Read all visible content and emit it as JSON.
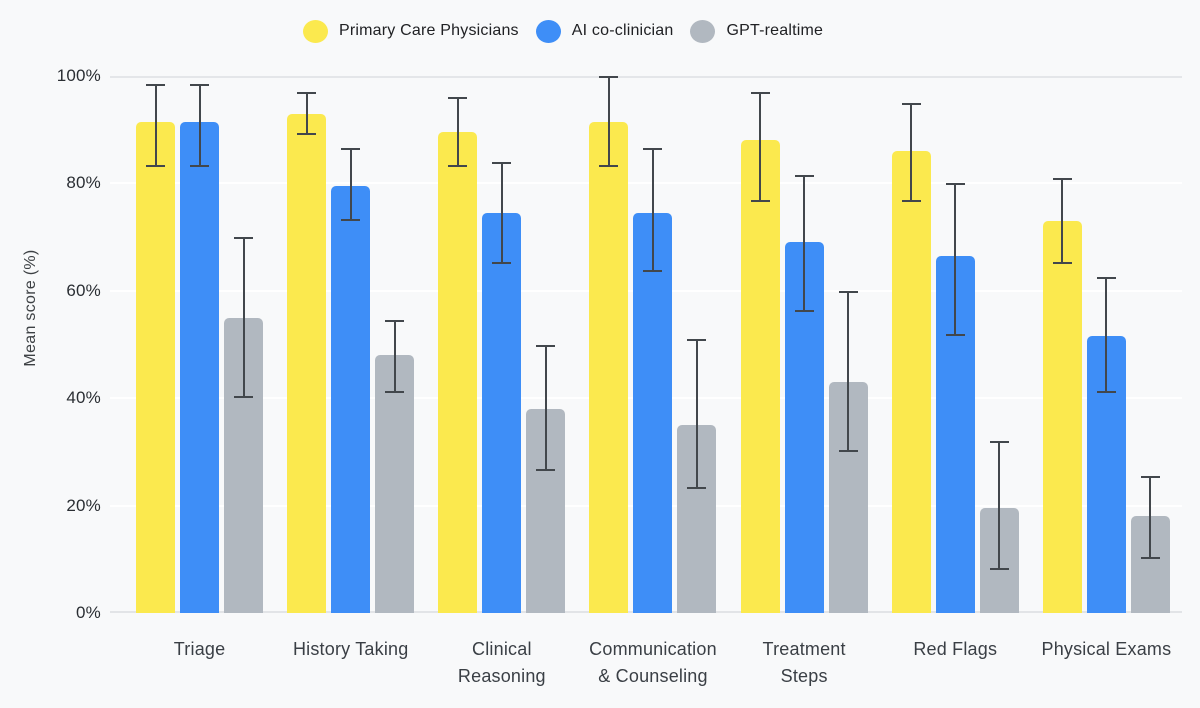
{
  "page": {
    "background": "#F8F9FA"
  },
  "chart_data": {
    "type": "bar",
    "title": "",
    "ylabel": "Mean score (%)",
    "ylim": [
      0,
      100
    ],
    "grid": "horizontal gridlines every 20%",
    "legend_position": "top-center",
    "error_bars": true,
    "categories": [
      "Triage",
      "History Taking",
      "Clinical Reasoning",
      "Communication & Counseling",
      "Treatment Steps",
      "Red Flags",
      "Physical Exams"
    ],
    "category_label_lines": [
      [
        "Triage"
      ],
      [
        "History Taking"
      ],
      [
        "Clinical",
        "Reasoning"
      ],
      [
        "Communication",
        "& Counseling"
      ],
      [
        "Treatment",
        "Steps"
      ],
      [
        "Red Flags"
      ],
      [
        "Physical Exams"
      ]
    ],
    "yticks": [
      {
        "value": 100,
        "label": "100%"
      },
      {
        "value": 80,
        "label": "80%"
      },
      {
        "value": 60,
        "label": "60%"
      },
      {
        "value": 40,
        "label": "40%"
      },
      {
        "value": 20,
        "label": "20%"
      },
      {
        "value": 0,
        "label": "0%"
      }
    ],
    "series": [
      {
        "name": "Primary Care Physicians",
        "color": "#FBE94E",
        "values": [
          91.5,
          93,
          89.5,
          91.5,
          88,
          86,
          73
        ],
        "error_low": [
          83,
          89,
          83,
          83,
          76.5,
          76.5,
          65
        ],
        "error_high": [
          98.5,
          97,
          96,
          100,
          97,
          95,
          81
        ]
      },
      {
        "name": "AI co-clinician",
        "color": "#3E8EF7",
        "values": [
          91.5,
          79.5,
          74.5,
          74.5,
          69,
          66.5,
          51.5
        ],
        "error_low": [
          83,
          73,
          65,
          63.5,
          56,
          51.5,
          41
        ],
        "error_high": [
          98.5,
          86.5,
          84,
          86.5,
          81.5,
          80,
          62.5
        ]
      },
      {
        "name": "GPT-realtime",
        "color": "#B1B8C0",
        "values": [
          55,
          48,
          38,
          35,
          43,
          19.5,
          18
        ],
        "error_low": [
          40,
          41,
          26.5,
          23,
          30,
          8,
          10
        ],
        "error_high": [
          70,
          54.5,
          50,
          51,
          60,
          32,
          25.5
        ]
      }
    ],
    "colors": {
      "background": "#F8F9FA",
      "gridline_major": "#E4E6E9",
      "gridline_minor": "#FFFFFF",
      "error_bar": "#42474C",
      "tick_text": "#2A2E33",
      "label_text": "#3A3F45"
    }
  }
}
